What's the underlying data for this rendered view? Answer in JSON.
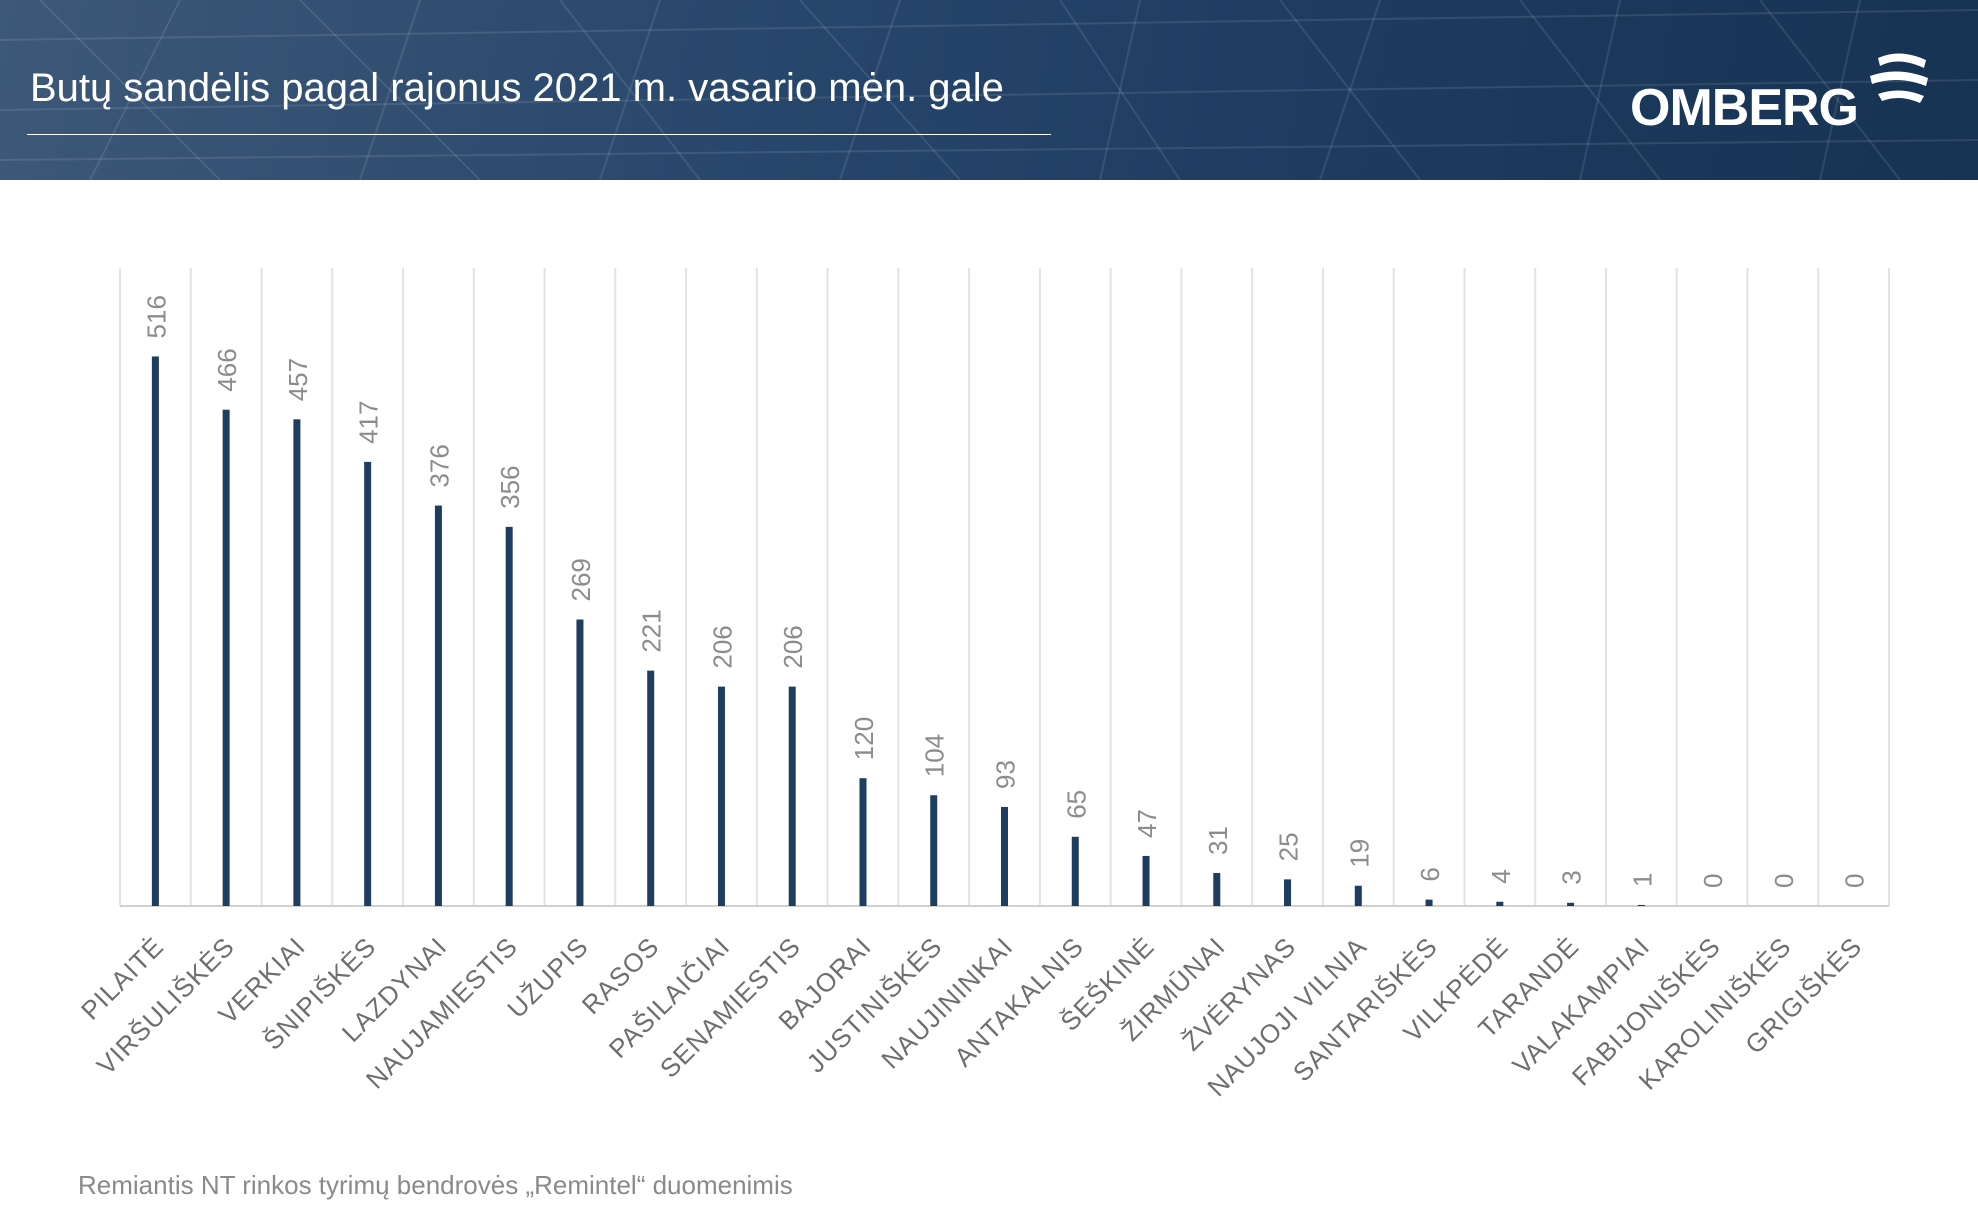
{
  "header": {
    "title": "Butų sandėlis pagal rajonus 2021 m. vasario mėn. gale",
    "logo_text": "OMBERG",
    "background_color": "#1f3d61"
  },
  "footer": {
    "source": "Remiantis NT rinkos tyrimų bendrovės „Remintel“ duomenimis"
  },
  "chart_data": {
    "type": "bar",
    "categories": [
      "PILAITĖ",
      "VIRŠULIŠKĖS",
      "VERKIAI",
      "ŠNIPIŠKĖS",
      "LAZDYNAI",
      "NAUJAMIESTIS",
      "UŽUPIS",
      "RASOS",
      "PAŠILAIČIAI",
      "SENAMIESTIS",
      "BAJORAI",
      "JUSTINIŠKĖS",
      "NAUJININKAI",
      "ANTAKALNIS",
      "ŠEŠKINĖ",
      "ŽIRMŪNAI",
      "ŽVĖRYNAS",
      "NAUJOJI VILNIA",
      "SANTARIŠKĖS",
      "VILKPĖDĖ",
      "TARANDĖ",
      "VALAKAMPIAI",
      "FABIJONIŠKĖS",
      "KAROLINIŠKĖS",
      "GRIGIŠKĖS"
    ],
    "values": [
      516,
      466,
      457,
      417,
      376,
      356,
      269,
      221,
      206,
      206,
      120,
      104,
      93,
      65,
      47,
      31,
      25,
      19,
      6,
      4,
      3,
      1,
      0,
      0,
      0
    ],
    "ylim": [
      0,
      600
    ],
    "grid": "vertical category separators",
    "bar_color": "#1f3d5e",
    "label_color": "#8c8c8c",
    "grid_color": "#e2e2e2"
  }
}
